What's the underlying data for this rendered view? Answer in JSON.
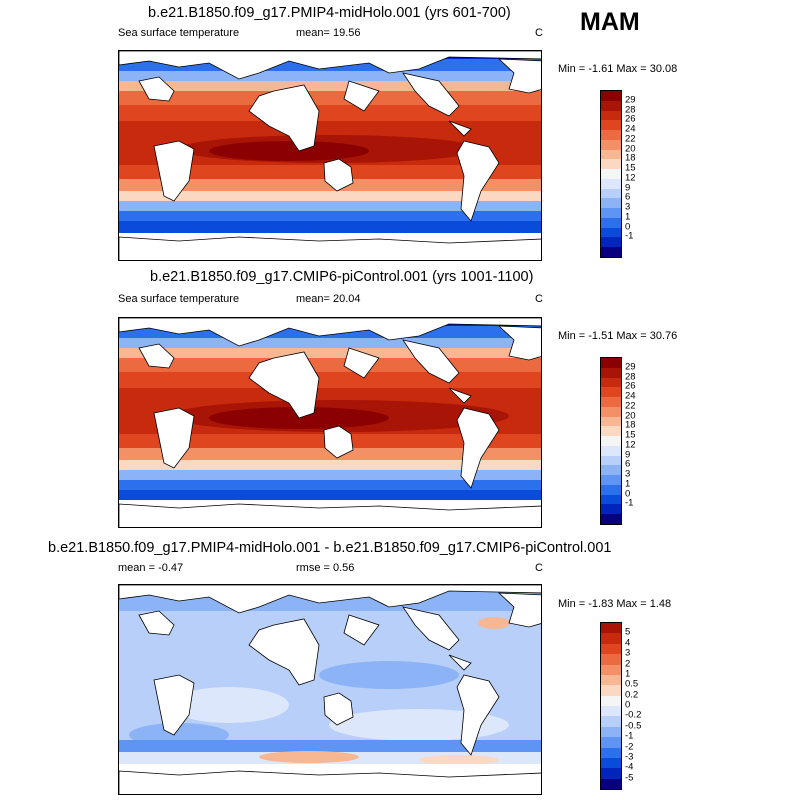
{
  "season": "MAM",
  "colors": {
    "sst_scale": [
      "#08007e",
      "#0025be",
      "#0b4bdb",
      "#2c70ee",
      "#5e94f4",
      "#8db3f7",
      "#b7cff9",
      "#dce7fb",
      "#f5f5f5",
      "#fbd8c2",
      "#f7b793",
      "#f39066",
      "#ec6a40",
      "#df461f",
      "#c72a0d",
      "#a81405",
      "#8b0000"
    ],
    "diff_scale": [
      "#08007e",
      "#0025be",
      "#0b4bdb",
      "#2c70ee",
      "#5e94f4",
      "#8db3f7",
      "#b7cff9",
      "#dce7fb",
      "#f5f5f5",
      "#fbd8c2",
      "#f7b793",
      "#f39066",
      "#ec6a40",
      "#df461f",
      "#c72a0d",
      "#a81405"
    ]
  },
  "panels": [
    {
      "title": "b.e21.B1850.f09_g17.PMIP4-midHolo.001 (yrs 601-700)",
      "left_label": "Sea surface temperature",
      "center_label": "mean=  19.56",
      "units": "C",
      "minmax": "Min =  -1.61 Max =  30.08",
      "legend_ticks": [
        "29",
        "28",
        "26",
        "24",
        "22",
        "20",
        "18",
        "15",
        "12",
        "9",
        "6",
        "3",
        "1",
        "0",
        "-1"
      ]
    },
    {
      "title": "b.e21.B1850.f09_g17.CMIP6-piControl.001 (yrs 1001-1100)",
      "left_label": "Sea surface temperature",
      "center_label": "mean=  20.04",
      "units": "C",
      "minmax": "Min =  -1.51 Max =  30.76",
      "legend_ticks": [
        "29",
        "28",
        "26",
        "24",
        "22",
        "20",
        "18",
        "15",
        "12",
        "9",
        "6",
        "3",
        "1",
        "0",
        "-1"
      ]
    },
    {
      "title": "b.e21.B1850.f09_g17.PMIP4-midHolo.001 - b.e21.B1850.f09_g17.CMIP6-piControl.001",
      "left_label": "mean =  -0.47",
      "center_label": "rmse =   0.56",
      "units": "C",
      "minmax": "Min =  -1.83 Max =   1.48",
      "legend_ticks": [
        "5",
        "4",
        "3",
        "2",
        "1",
        "0.5",
        "0.2",
        "0",
        "-0.2",
        "-0.5",
        "-1",
        "-2",
        "-3",
        "-4",
        "-5"
      ]
    }
  ]
}
